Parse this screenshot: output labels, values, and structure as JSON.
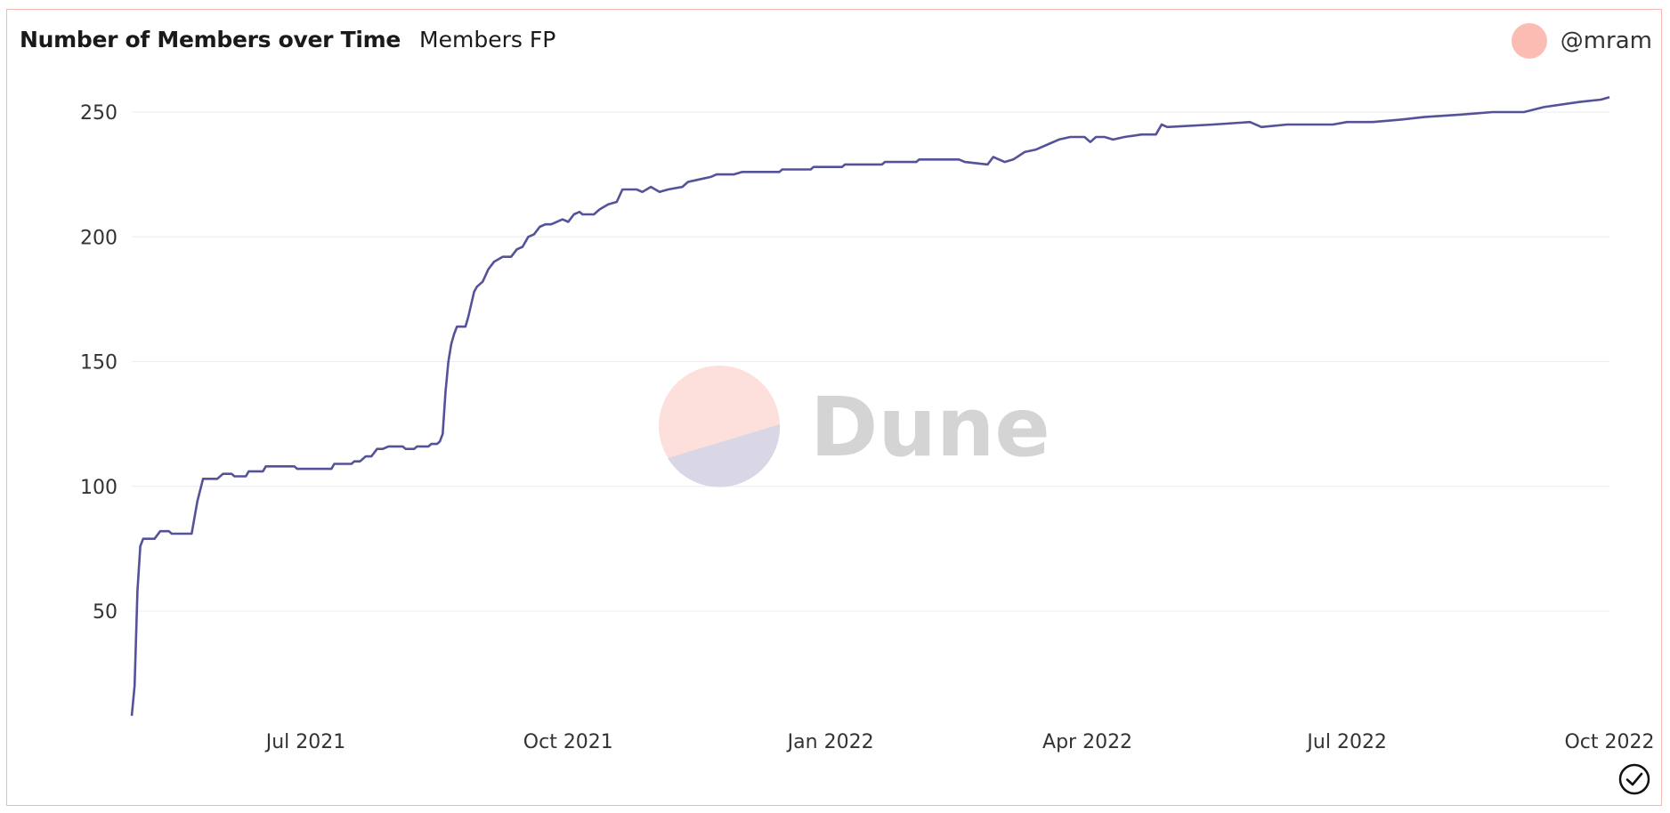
{
  "header": {
    "title": "Number of Members over Time",
    "subtitle": "Members FP",
    "author": "@mram"
  },
  "watermark": {
    "text": "Dune"
  },
  "colors": {
    "line": "#55529a",
    "grid": "#ececec",
    "border": "#f2b8b3",
    "avatar": "#fbbcb4",
    "logo_top": "#fde0db",
    "logo_bottom": "#d9d7e6"
  },
  "icons": {
    "status": "check-circle-icon"
  },
  "chart_data": {
    "type": "line",
    "title": "Number of Members over Time",
    "xlabel": "",
    "ylabel": "",
    "x_range": [
      "2021-05-01",
      "2022-10-01"
    ],
    "ylim": [
      7,
      262
    ],
    "y_ticks": [
      50,
      100,
      150,
      200,
      250
    ],
    "x_ticks": [
      {
        "date": "2021-07-01",
        "label": "Jul 2021"
      },
      {
        "date": "2021-10-01",
        "label": "Oct 2021"
      },
      {
        "date": "2022-01-01",
        "label": "Jan 2022"
      },
      {
        "date": "2022-04-01",
        "label": "Apr 2022"
      },
      {
        "date": "2022-07-01",
        "label": "Jul 2022"
      },
      {
        "date": "2022-10-01",
        "label": "Oct 2022"
      }
    ],
    "grid": true,
    "legend": "none",
    "series": [
      {
        "points": [
          [
            "2021-05-01",
            8
          ],
          [
            "2021-05-02",
            20
          ],
          [
            "2021-05-03",
            58
          ],
          [
            "2021-05-04",
            76
          ],
          [
            "2021-05-05",
            79
          ],
          [
            "2021-05-09",
            79
          ],
          [
            "2021-05-11",
            82
          ],
          [
            "2021-05-14",
            82
          ],
          [
            "2021-05-15",
            81
          ],
          [
            "2021-05-22",
            81
          ],
          [
            "2021-05-24",
            94
          ],
          [
            "2021-05-26",
            103
          ],
          [
            "2021-05-31",
            103
          ],
          [
            "2021-06-02",
            105
          ],
          [
            "2021-06-05",
            105
          ],
          [
            "2021-06-06",
            104
          ],
          [
            "2021-06-10",
            104
          ],
          [
            "2021-06-11",
            106
          ],
          [
            "2021-06-16",
            106
          ],
          [
            "2021-06-17",
            108
          ],
          [
            "2021-06-27",
            108
          ],
          [
            "2021-06-28",
            107
          ],
          [
            "2021-07-10",
            107
          ],
          [
            "2021-07-11",
            109
          ],
          [
            "2021-07-17",
            109
          ],
          [
            "2021-07-18",
            110
          ],
          [
            "2021-07-20",
            110
          ],
          [
            "2021-07-22",
            112
          ],
          [
            "2021-07-24",
            112
          ],
          [
            "2021-07-26",
            115
          ],
          [
            "2021-07-28",
            115
          ],
          [
            "2021-07-30",
            116
          ],
          [
            "2021-08-04",
            116
          ],
          [
            "2021-08-05",
            115
          ],
          [
            "2021-08-08",
            115
          ],
          [
            "2021-08-09",
            116
          ],
          [
            "2021-08-13",
            116
          ],
          [
            "2021-08-14",
            117
          ],
          [
            "2021-08-16",
            117
          ],
          [
            "2021-08-17",
            118
          ],
          [
            "2021-08-18",
            121
          ],
          [
            "2021-08-19",
            138
          ],
          [
            "2021-08-20",
            150
          ],
          [
            "2021-08-21",
            157
          ],
          [
            "2021-08-22",
            161
          ],
          [
            "2021-08-23",
            164
          ],
          [
            "2021-08-26",
            164
          ],
          [
            "2021-08-27",
            168
          ],
          [
            "2021-08-29",
            178
          ],
          [
            "2021-08-30",
            180
          ],
          [
            "2021-09-01",
            182
          ],
          [
            "2021-09-03",
            187
          ],
          [
            "2021-09-05",
            190
          ],
          [
            "2021-09-08",
            192
          ],
          [
            "2021-09-11",
            192
          ],
          [
            "2021-09-13",
            195
          ],
          [
            "2021-09-15",
            196
          ],
          [
            "2021-09-17",
            200
          ],
          [
            "2021-09-19",
            201
          ],
          [
            "2021-09-21",
            204
          ],
          [
            "2021-09-23",
            205
          ],
          [
            "2021-09-25",
            205
          ],
          [
            "2021-09-27",
            206
          ],
          [
            "2021-09-29",
            207
          ],
          [
            "2021-10-01",
            206
          ],
          [
            "2021-10-03",
            209
          ],
          [
            "2021-10-05",
            210
          ],
          [
            "2021-10-06",
            209
          ],
          [
            "2021-10-10",
            209
          ],
          [
            "2021-10-12",
            211
          ],
          [
            "2021-10-15",
            213
          ],
          [
            "2021-10-18",
            214
          ],
          [
            "2021-10-20",
            219
          ],
          [
            "2021-10-25",
            219
          ],
          [
            "2021-10-27",
            218
          ],
          [
            "2021-10-30",
            220
          ],
          [
            "2021-11-02",
            218
          ],
          [
            "2021-11-05",
            219
          ],
          [
            "2021-11-10",
            220
          ],
          [
            "2021-11-12",
            222
          ],
          [
            "2021-11-16",
            223
          ],
          [
            "2021-11-20",
            224
          ],
          [
            "2021-11-22",
            225
          ],
          [
            "2021-11-28",
            225
          ],
          [
            "2021-12-01",
            226
          ],
          [
            "2021-12-14",
            226
          ],
          [
            "2021-12-15",
            227
          ],
          [
            "2021-12-25",
            227
          ],
          [
            "2021-12-26",
            228
          ],
          [
            "2022-01-05",
            228
          ],
          [
            "2022-01-06",
            229
          ],
          [
            "2022-01-19",
            229
          ],
          [
            "2022-01-20",
            230
          ],
          [
            "2022-01-31",
            230
          ],
          [
            "2022-02-01",
            231
          ],
          [
            "2022-02-15",
            231
          ],
          [
            "2022-02-17",
            230
          ],
          [
            "2022-02-25",
            229
          ],
          [
            "2022-02-27",
            232
          ],
          [
            "2022-03-01",
            231
          ],
          [
            "2022-03-03",
            230
          ],
          [
            "2022-03-06",
            231
          ],
          [
            "2022-03-10",
            234
          ],
          [
            "2022-03-14",
            235
          ],
          [
            "2022-03-18",
            237
          ],
          [
            "2022-03-22",
            239
          ],
          [
            "2022-03-26",
            240
          ],
          [
            "2022-03-31",
            240
          ],
          [
            "2022-04-02",
            238
          ],
          [
            "2022-04-04",
            240
          ],
          [
            "2022-04-07",
            240
          ],
          [
            "2022-04-10",
            239
          ],
          [
            "2022-04-14",
            240
          ],
          [
            "2022-04-20",
            241
          ],
          [
            "2022-04-25",
            241
          ],
          [
            "2022-04-27",
            245
          ],
          [
            "2022-04-29",
            244
          ],
          [
            "2022-05-15",
            245
          ],
          [
            "2022-05-28",
            246
          ],
          [
            "2022-06-01",
            244
          ],
          [
            "2022-06-10",
            245
          ],
          [
            "2022-06-26",
            245
          ],
          [
            "2022-07-01",
            246
          ],
          [
            "2022-07-10",
            246
          ],
          [
            "2022-07-20",
            247
          ],
          [
            "2022-07-28",
            248
          ],
          [
            "2022-08-10",
            249
          ],
          [
            "2022-08-21",
            250
          ],
          [
            "2022-09-01",
            250
          ],
          [
            "2022-09-08",
            252
          ],
          [
            "2022-09-20",
            254
          ],
          [
            "2022-09-28",
            255
          ],
          [
            "2022-10-01",
            256
          ]
        ]
      }
    ]
  }
}
